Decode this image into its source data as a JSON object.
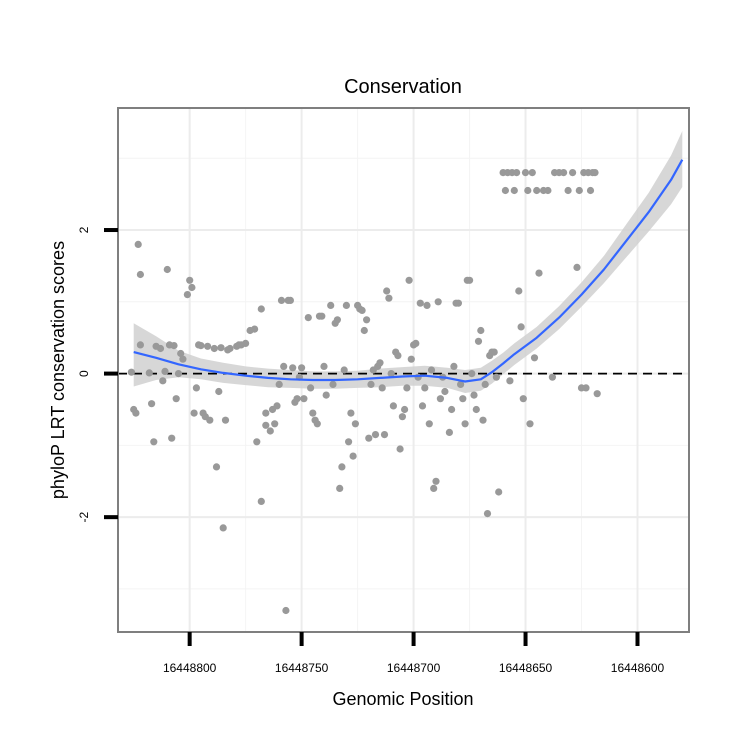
{
  "chart_data": {
    "type": "scatter",
    "title": "Conservation",
    "xlabel": "Genomic Position",
    "ylabel": "phyloP LRT conservation scores",
    "x_reversed": true,
    "xlim": [
      16448577,
      16448832
    ],
    "ylim": [
      -3.6,
      3.7
    ],
    "x_ticks": [
      16448800,
      16448750,
      16448700,
      16448650,
      16448600
    ],
    "x_tick_labels": [
      "16448800",
      "16448750",
      "16448700",
      "16448650",
      "16448600"
    ],
    "y_ticks": [
      -2,
      0,
      2
    ],
    "y_tick_labels": [
      "-2",
      "0",
      "2"
    ],
    "y_minor_gridlines": [
      -3,
      -1,
      1,
      3
    ],
    "x_minor_gridlines": [
      16448775,
      16448725,
      16448675,
      16448625
    ],
    "grid": true,
    "reference_line": {
      "y": 0,
      "style": "dashed",
      "color": "#000000"
    },
    "point_color": "#999999",
    "smooth_color": "#3366ff",
    "band_color": "#d0d0d0",
    "smooth": {
      "x": [
        16448825,
        16448815,
        16448805,
        16448795,
        16448785,
        16448775,
        16448765,
        16448755,
        16448745,
        16448735,
        16448725,
        16448715,
        16448705,
        16448695,
        16448685,
        16448677,
        16448670,
        16448665,
        16448660,
        16448655,
        16448645,
        16448635,
        16448625,
        16448615,
        16448605,
        16448595,
        16448585,
        16448580
      ],
      "y": [
        0.3,
        0.22,
        0.13,
        0.06,
        0.01,
        -0.03,
        -0.06,
        -0.08,
        -0.09,
        -0.09,
        -0.08,
        -0.06,
        -0.04,
        -0.03,
        -0.06,
        -0.11,
        -0.08,
        0.02,
        0.14,
        0.27,
        0.5,
        0.78,
        1.1,
        1.45,
        1.85,
        2.25,
        2.7,
        2.98
      ],
      "lower": [
        -0.18,
        -0.09,
        -0.05,
        -0.08,
        -0.13,
        -0.16,
        -0.19,
        -0.2,
        -0.21,
        -0.21,
        -0.2,
        -0.19,
        -0.17,
        -0.17,
        -0.2,
        -0.27,
        -0.24,
        -0.14,
        -0.01,
        0.12,
        0.35,
        0.62,
        0.93,
        1.26,
        1.62,
        1.98,
        2.36,
        2.6
      ],
      "upper": [
        0.7,
        0.52,
        0.32,
        0.21,
        0.15,
        0.1,
        0.07,
        0.05,
        0.03,
        0.03,
        0.04,
        0.07,
        0.09,
        0.11,
        0.08,
        0.05,
        0.08,
        0.18,
        0.29,
        0.42,
        0.65,
        0.94,
        1.27,
        1.64,
        2.08,
        2.52,
        3.04,
        3.38
      ]
    },
    "points": [
      [
        16448826,
        0.02
      ],
      [
        16448825,
        -0.5
      ],
      [
        16448824,
        -0.55
      ],
      [
        16448823,
        1.8
      ],
      [
        16448822,
        1.38
      ],
      [
        16448822,
        0.4
      ],
      [
        16448818,
        0.01
      ],
      [
        16448817,
        -0.42
      ],
      [
        16448816,
        -0.95
      ],
      [
        16448815,
        0.38
      ],
      [
        16448813,
        0.35
      ],
      [
        16448812,
        -0.1
      ],
      [
        16448811,
        0.03
      ],
      [
        16448810,
        1.45
      ],
      [
        16448809,
        0.4
      ],
      [
        16448808,
        -0.9
      ],
      [
        16448807,
        0.39
      ],
      [
        16448806,
        -0.35
      ],
      [
        16448805,
        0.0
      ],
      [
        16448804,
        0.28
      ],
      [
        16448803,
        0.2
      ],
      [
        16448801,
        1.1
      ],
      [
        16448800,
        1.3
      ],
      [
        16448799,
        1.2
      ],
      [
        16448798,
        -0.55
      ],
      [
        16448797,
        -0.2
      ],
      [
        16448796,
        0.4
      ],
      [
        16448795,
        0.39
      ],
      [
        16448794,
        -0.55
      ],
      [
        16448793,
        -0.6
      ],
      [
        16448792,
        0.38
      ],
      [
        16448791,
        -0.65
      ],
      [
        16448789,
        0.35
      ],
      [
        16448788,
        -1.3
      ],
      [
        16448787,
        -0.25
      ],
      [
        16448786,
        0.36
      ],
      [
        16448785,
        -2.15
      ],
      [
        16448784,
        -0.65
      ],
      [
        16448783,
        0.33
      ],
      [
        16448782,
        0.35
      ],
      [
        16448779,
        0.38
      ],
      [
        16448778,
        0.4
      ],
      [
        16448777,
        0.4
      ],
      [
        16448775,
        0.42
      ],
      [
        16448773,
        0.6
      ],
      [
        16448771,
        0.62
      ],
      [
        16448770,
        -0.95
      ],
      [
        16448768,
        0.9
      ],
      [
        16448768,
        -1.78
      ],
      [
        16448766,
        -0.55
      ],
      [
        16448766,
        -0.72
      ],
      [
        16448764,
        -0.8
      ],
      [
        16448763,
        -0.5
      ],
      [
        16448762,
        -0.7
      ],
      [
        16448761,
        -0.45
      ],
      [
        16448760,
        -0.15
      ],
      [
        16448759,
        1.02
      ],
      [
        16448758,
        0.1
      ],
      [
        16448757,
        -3.3
      ],
      [
        16448756,
        1.02
      ],
      [
        16448755,
        1.02
      ],
      [
        16448754,
        0.08
      ],
      [
        16448753,
        -0.4
      ],
      [
        16448752,
        -0.35
      ],
      [
        16448751,
        -0.05
      ],
      [
        16448750,
        0.08
      ],
      [
        16448749,
        -0.35
      ],
      [
        16448747,
        0.78
      ],
      [
        16448746,
        -0.2
      ],
      [
        16448745,
        -0.55
      ],
      [
        16448744,
        -0.65
      ],
      [
        16448743,
        -0.7
      ],
      [
        16448742,
        0.8
      ],
      [
        16448741,
        0.8
      ],
      [
        16448740,
        0.1
      ],
      [
        16448739,
        -0.3
      ],
      [
        16448737,
        0.95
      ],
      [
        16448736,
        -0.15
      ],
      [
        16448735,
        0.7
      ],
      [
        16448734,
        0.75
      ],
      [
        16448733,
        -1.6
      ],
      [
        16448732,
        -1.3
      ],
      [
        16448731,
        0.05
      ],
      [
        16448730,
        0.95
      ],
      [
        16448729,
        -0.95
      ],
      [
        16448728,
        -0.55
      ],
      [
        16448727,
        -1.15
      ],
      [
        16448726,
        -0.7
      ],
      [
        16448725,
        0.95
      ],
      [
        16448724,
        0.9
      ],
      [
        16448723,
        0.88
      ],
      [
        16448722,
        0.6
      ],
      [
        16448721,
        0.75
      ],
      [
        16448720,
        -0.9
      ],
      [
        16448719,
        -0.15
      ],
      [
        16448718,
        0.05
      ],
      [
        16448717,
        -0.85
      ],
      [
        16448716,
        0.1
      ],
      [
        16448715,
        0.15
      ],
      [
        16448714,
        -0.2
      ],
      [
        16448713,
        -0.85
      ],
      [
        16448712,
        1.15
      ],
      [
        16448711,
        1.05
      ],
      [
        16448710,
        0.0
      ],
      [
        16448709,
        -0.45
      ],
      [
        16448708,
        0.3
      ],
      [
        16448707,
        0.25
      ],
      [
        16448706,
        -1.05
      ],
      [
        16448705,
        -0.6
      ],
      [
        16448704,
        -0.5
      ],
      [
        16448703,
        -0.2
      ],
      [
        16448702,
        1.3
      ],
      [
        16448701,
        0.2
      ],
      [
        16448700,
        0.4
      ],
      [
        16448699,
        0.42
      ],
      [
        16448698,
        -0.05
      ],
      [
        16448697,
        0.98
      ],
      [
        16448696,
        -0.45
      ],
      [
        16448695,
        -0.2
      ],
      [
        16448694,
        0.95
      ],
      [
        16448693,
        -0.7
      ],
      [
        16448692,
        0.05
      ],
      [
        16448691,
        -1.6
      ],
      [
        16448690,
        -1.5
      ],
      [
        16448689,
        1.0
      ],
      [
        16448688,
        -0.35
      ],
      [
        16448687,
        -0.05
      ],
      [
        16448686,
        -0.25
      ],
      [
        16448684,
        -0.82
      ],
      [
        16448683,
        -0.5
      ],
      [
        16448682,
        0.1
      ],
      [
        16448681,
        0.98
      ],
      [
        16448680,
        0.98
      ],
      [
        16448679,
        -0.15
      ],
      [
        16448678,
        -0.35
      ],
      [
        16448677,
        -0.7
      ],
      [
        16448676,
        1.3
      ],
      [
        16448675,
        1.3
      ],
      [
        16448674,
        0.0
      ],
      [
        16448673,
        -0.3
      ],
      [
        16448672,
        -0.5
      ],
      [
        16448671,
        0.45
      ],
      [
        16448670,
        0.6
      ],
      [
        16448669,
        -0.65
      ],
      [
        16448668,
        -0.15
      ],
      [
        16448667,
        -1.95
      ],
      [
        16448666,
        0.25
      ],
      [
        16448665,
        0.3
      ],
      [
        16448664,
        0.3
      ],
      [
        16448663,
        -0.05
      ],
      [
        16448662,
        -1.65
      ],
      [
        16448660,
        2.8
      ],
      [
        16448659,
        2.55
      ],
      [
        16448658,
        2.8
      ],
      [
        16448657,
        -0.1
      ],
      [
        16448656,
        2.8
      ],
      [
        16448655,
        2.55
      ],
      [
        16448654,
        2.8
      ],
      [
        16448653,
        1.15
      ],
      [
        16448652,
        0.65
      ],
      [
        16448651,
        -0.35
      ],
      [
        16448650,
        2.8
      ],
      [
        16448649,
        2.55
      ],
      [
        16448648,
        -0.7
      ],
      [
        16448647,
        2.8
      ],
      [
        16448646,
        0.22
      ],
      [
        16448645,
        2.55
      ],
      [
        16448644,
        1.4
      ],
      [
        16448642,
        2.55
      ],
      [
        16448640,
        2.55
      ],
      [
        16448638,
        -0.05
      ],
      [
        16448637,
        2.8
      ],
      [
        16448635,
        2.8
      ],
      [
        16448633,
        2.8
      ],
      [
        16448631,
        2.55
      ],
      [
        16448629,
        2.8
      ],
      [
        16448627,
        1.48
      ],
      [
        16448626,
        2.55
      ],
      [
        16448625,
        -0.2
      ],
      [
        16448624,
        2.8
      ],
      [
        16448623,
        -0.2
      ],
      [
        16448622,
        2.8
      ],
      [
        16448621,
        2.55
      ],
      [
        16448620,
        2.8
      ],
      [
        16448619,
        2.8
      ],
      [
        16448618,
        -0.28
      ]
    ]
  }
}
